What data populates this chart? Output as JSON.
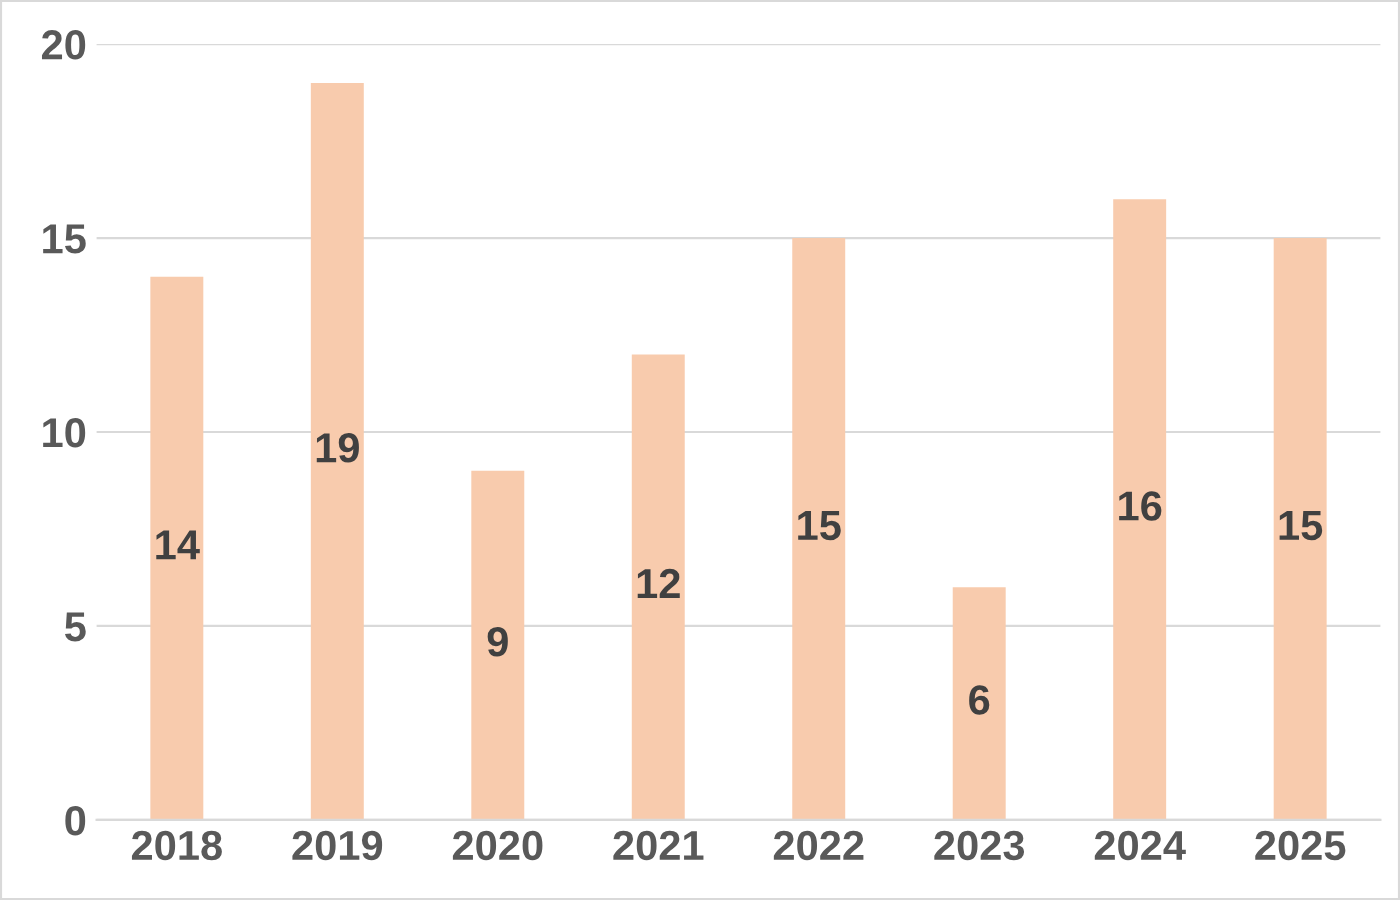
{
  "chart_data": {
    "type": "bar",
    "categories": [
      "2018",
      "2019",
      "2020",
      "2021",
      "2022",
      "2023",
      "2024",
      "2025"
    ],
    "values": [
      14,
      19,
      9,
      12,
      15,
      6,
      16,
      15
    ],
    "color": "#f8cbad",
    "ylim": [
      0,
      20
    ],
    "yticks": [
      0,
      5,
      10,
      15,
      20
    ],
    "grid": "y",
    "data_labels": true
  }
}
